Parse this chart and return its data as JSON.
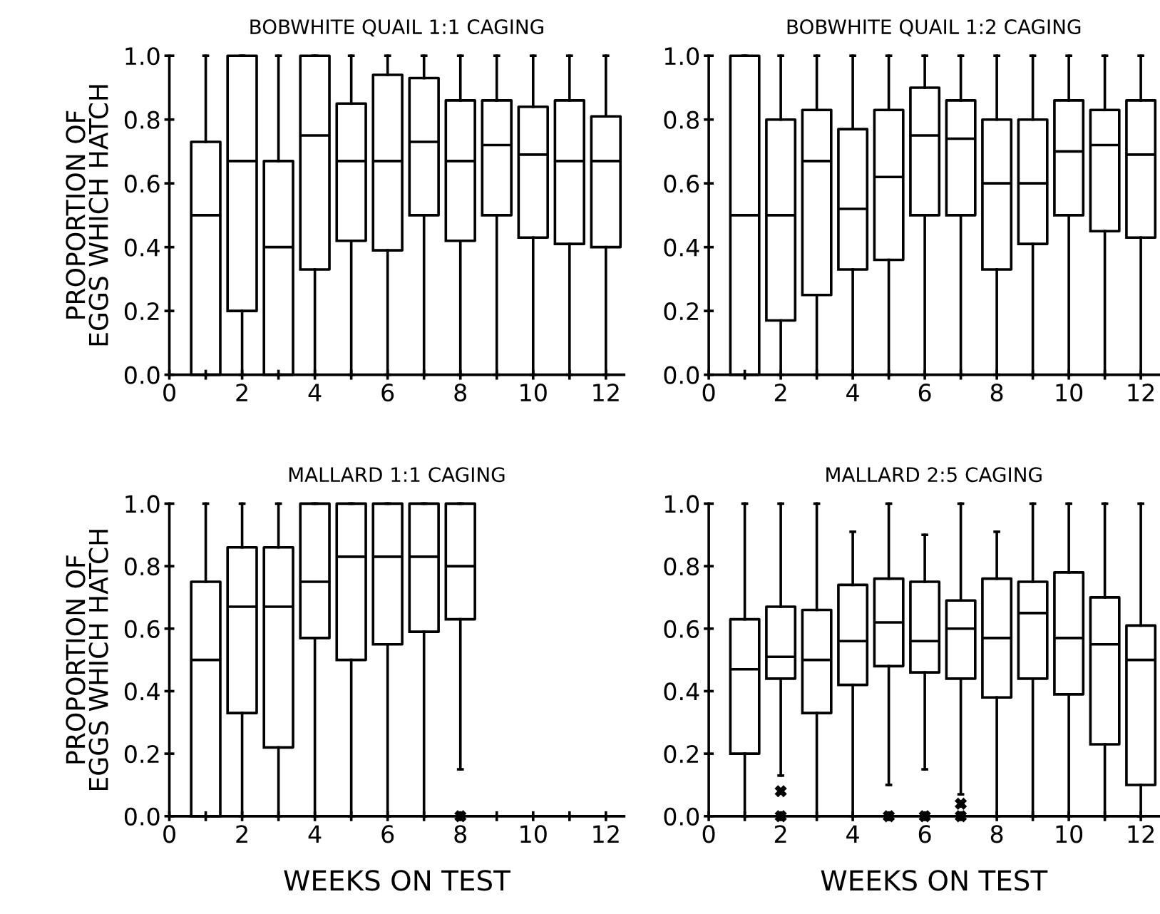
{
  "chart_data": [
    {
      "type": "box",
      "title": "BOBWHITE QUAIL 1:1 CAGING",
      "ylabel": "PROPORTION OF\nEGGS WHICH HATCH",
      "x": [
        1,
        2,
        3,
        4,
        5,
        6,
        7,
        8,
        9,
        10,
        11,
        12
      ],
      "boxes": [
        {
          "low": 0,
          "q1": 0,
          "median": 0.5,
          "q3": 0.73,
          "high": 1.0
        },
        {
          "low": 0,
          "q1": 0.2,
          "median": 0.67,
          "q3": 1.0,
          "high": 1.0
        },
        {
          "low": 0,
          "q1": 0,
          "median": 0.4,
          "q3": 0.67,
          "high": 1.0
        },
        {
          "low": 0,
          "q1": 0.33,
          "median": 0.75,
          "q3": 1.0,
          "high": 1.0
        },
        {
          "low": 0,
          "q1": 0.42,
          "median": 0.67,
          "q3": 0.85,
          "high": 1.0
        },
        {
          "low": 0,
          "q1": 0.39,
          "median": 0.67,
          "q3": 0.94,
          "high": 1.0
        },
        {
          "low": 0,
          "q1": 0.5,
          "median": 0.73,
          "q3": 0.93,
          "high": 1.0
        },
        {
          "low": 0,
          "q1": 0.42,
          "median": 0.67,
          "q3": 0.86,
          "high": 1.0
        },
        {
          "low": 0,
          "q1": 0.5,
          "median": 0.72,
          "q3": 0.86,
          "high": 1.0
        },
        {
          "low": 0,
          "q1": 0.43,
          "median": 0.69,
          "q3": 0.84,
          "high": 1.0
        },
        {
          "low": 0,
          "q1": 0.41,
          "median": 0.67,
          "q3": 0.86,
          "high": 1.0
        },
        {
          "low": 0,
          "q1": 0.4,
          "median": 0.67,
          "q3": 0.81,
          "high": 1.0
        }
      ],
      "xlim": [
        0,
        12.5
      ],
      "ylim": [
        0,
        1.0
      ],
      "xticks": [
        0,
        {
          "value": 1,
          "label": null
        },
        2,
        {
          "value": 3,
          "label": null
        },
        4,
        {
          "value": 5,
          "label": null
        },
        6,
        {
          "value": 7,
          "label": null
        },
        8,
        {
          "value": 9,
          "label": null
        },
        10,
        {
          "value": 11,
          "label": null
        },
        12
      ],
      "yticks": [
        {
          "value": 0,
          "label": "0.0"
        },
        {
          "value": 0.2,
          "label": "0.2"
        },
        {
          "value": 0.4,
          "label": "0.4"
        },
        {
          "value": 0.6,
          "label": "0.6"
        },
        {
          "value": 0.8,
          "label": "0.8"
        },
        {
          "value": 1.0,
          "label": "1.0"
        }
      ]
    },
    {
      "type": "box",
      "title": "BOBWHITE QUAIL 1:2 CAGING",
      "x": [
        1,
        2,
        3,
        4,
        5,
        6,
        7,
        8,
        9,
        10,
        11,
        12
      ],
      "boxes": [
        {
          "low": 0,
          "q1": 0,
          "median": 0.5,
          "q3": 1.0,
          "high": 1.0
        },
        {
          "low": 0,
          "q1": 0.17,
          "median": 0.5,
          "q3": 0.8,
          "high": 1.0
        },
        {
          "low": 0,
          "q1": 0.25,
          "median": 0.67,
          "q3": 0.83,
          "high": 1.0
        },
        {
          "low": 0,
          "q1": 0.33,
          "median": 0.52,
          "q3": 0.77,
          "high": 1.0
        },
        {
          "low": 0,
          "q1": 0.36,
          "median": 0.62,
          "q3": 0.83,
          "high": 1.0
        },
        {
          "low": 0,
          "q1": 0.5,
          "median": 0.75,
          "q3": 0.9,
          "high": 1.0
        },
        {
          "low": 0,
          "q1": 0.5,
          "median": 0.74,
          "q3": 0.86,
          "high": 1.0
        },
        {
          "low": 0,
          "q1": 0.33,
          "median": 0.6,
          "q3": 0.8,
          "high": 1.0
        },
        {
          "low": 0,
          "q1": 0.41,
          "median": 0.6,
          "q3": 0.8,
          "high": 1.0
        },
        {
          "low": 0,
          "q1": 0.5,
          "median": 0.7,
          "q3": 0.86,
          "high": 1.0
        },
        {
          "low": 0,
          "q1": 0.45,
          "median": 0.72,
          "q3": 0.83,
          "high": 1.0
        },
        {
          "low": 0,
          "q1": 0.43,
          "median": 0.69,
          "q3": 0.86,
          "high": 1.0
        }
      ],
      "xlim": [
        0,
        12.5
      ],
      "ylim": [
        0,
        1.0
      ],
      "xticks": [
        0,
        {
          "value": 1,
          "label": null
        },
        2,
        {
          "value": 3,
          "label": null
        },
        4,
        {
          "value": 5,
          "label": null
        },
        6,
        {
          "value": 7,
          "label": null
        },
        8,
        {
          "value": 9,
          "label": null
        },
        10,
        {
          "value": 11,
          "label": null
        },
        12
      ],
      "yticks": [
        {
          "value": 0,
          "label": "0.0"
        },
        {
          "value": 0.2,
          "label": "0.2"
        },
        {
          "value": 0.4,
          "label": "0.4"
        },
        {
          "value": 0.6,
          "label": "0.6"
        },
        {
          "value": 0.8,
          "label": "0.8"
        },
        {
          "value": 1.0,
          "label": "1.0"
        }
      ]
    },
    {
      "type": "box",
      "title": "MALLARD 1:1 CAGING",
      "ylabel": "PROPORTION OF\nEGGS WHICH HATCH",
      "xlabel": "WEEKS ON TEST",
      "x": [
        1,
        2,
        3,
        4,
        5,
        6,
        7,
        8
      ],
      "boxes": [
        {
          "low": 0,
          "q1": 0,
          "median": 0.5,
          "q3": 0.75,
          "high": 1.0
        },
        {
          "low": 0,
          "q1": 0.33,
          "median": 0.67,
          "q3": 0.86,
          "high": 1.0
        },
        {
          "low": 0,
          "q1": 0.22,
          "median": 0.67,
          "q3": 0.86,
          "high": 1.0
        },
        {
          "low": 0,
          "q1": 0.57,
          "median": 0.75,
          "q3": 1.0,
          "high": 1.0
        },
        {
          "low": 0,
          "q1": 0.5,
          "median": 0.83,
          "q3": 1.0,
          "high": 1.0
        },
        {
          "low": 0,
          "q1": 0.55,
          "median": 0.83,
          "q3": 1.0,
          "high": 1.0
        },
        {
          "low": 0,
          "q1": 0.59,
          "median": 0.83,
          "q3": 1.0,
          "high": 1.0
        },
        {
          "low": 0.15,
          "q1": 0.63,
          "median": 0.8,
          "q3": 1.0,
          "high": 1.0,
          "outliers": [
            0
          ]
        }
      ],
      "xlim": [
        0,
        12.5
      ],
      "ylim": [
        0,
        1.0
      ],
      "xticks": [
        0,
        {
          "value": 1,
          "label": null
        },
        2,
        {
          "value": 3,
          "label": null
        },
        4,
        {
          "value": 5,
          "label": null
        },
        6,
        {
          "value": 7,
          "label": null
        },
        8,
        {
          "value": 9,
          "label": null
        },
        10,
        {
          "value": 11,
          "label": null
        },
        12
      ],
      "yticks": [
        {
          "value": 0,
          "label": "0.0"
        },
        {
          "value": 0.2,
          "label": "0.2"
        },
        {
          "value": 0.4,
          "label": "0.4"
        },
        {
          "value": 0.6,
          "label": "0.6"
        },
        {
          "value": 0.8,
          "label": "0.8"
        },
        {
          "value": 1.0,
          "label": "1.0"
        }
      ]
    },
    {
      "type": "box",
      "title": "MALLARD 2:5 CAGING",
      "xlabel": "WEEKS ON TEST",
      "x": [
        1,
        2,
        3,
        4,
        5,
        6,
        7,
        8,
        9,
        10,
        11,
        12
      ],
      "boxes": [
        {
          "low": 0,
          "q1": 0.2,
          "median": 0.47,
          "q3": 0.63,
          "high": 1.0
        },
        {
          "low": 0.13,
          "q1": 0.44,
          "median": 0.51,
          "q3": 0.67,
          "high": 1.0,
          "outliers": [
            0.08,
            0
          ]
        },
        {
          "low": 0,
          "q1": 0.33,
          "median": 0.5,
          "q3": 0.66,
          "high": 1.0
        },
        {
          "low": 0,
          "q1": 0.42,
          "median": 0.56,
          "q3": 0.74,
          "high": 0.91
        },
        {
          "low": 0.1,
          "q1": 0.48,
          "median": 0.62,
          "q3": 0.76,
          "high": 1.0,
          "outliers": [
            0
          ]
        },
        {
          "low": 0.15,
          "q1": 0.46,
          "median": 0.56,
          "q3": 0.75,
          "high": 0.9,
          "outliers": [
            0
          ]
        },
        {
          "low": 0.07,
          "q1": 0.44,
          "median": 0.6,
          "q3": 0.69,
          "high": 1.0,
          "outliers": [
            0.04,
            0
          ]
        },
        {
          "low": 0,
          "q1": 0.38,
          "median": 0.57,
          "q3": 0.76,
          "high": 0.91
        },
        {
          "low": 0,
          "q1": 0.44,
          "median": 0.65,
          "q3": 0.75,
          "high": 1.0
        },
        {
          "low": 0,
          "q1": 0.39,
          "median": 0.57,
          "q3": 0.78,
          "high": 1.0
        },
        {
          "low": 0,
          "q1": 0.23,
          "median": 0.55,
          "q3": 0.7,
          "high": 1.0
        },
        {
          "low": 0,
          "q1": 0.1,
          "median": 0.5,
          "q3": 0.61,
          "high": 1.0
        }
      ],
      "xlim": [
        0,
        12.5
      ],
      "ylim": [
        0,
        1.0
      ],
      "xticks": [
        0,
        {
          "value": 1,
          "label": null
        },
        2,
        {
          "value": 3,
          "label": null
        },
        4,
        {
          "value": 5,
          "label": null
        },
        6,
        {
          "value": 7,
          "label": null
        },
        8,
        {
          "value": 9,
          "label": null
        },
        10,
        {
          "value": 11,
          "label": null
        },
        12
      ],
      "yticks": [
        {
          "value": 0,
          "label": "0.0"
        },
        {
          "value": 0.2,
          "label": "0.2"
        },
        {
          "value": 0.4,
          "label": "0.4"
        },
        {
          "value": 0.6,
          "label": "0.6"
        },
        {
          "value": 0.8,
          "label": "0.8"
        },
        {
          "value": 1.0,
          "label": "1.0"
        }
      ]
    }
  ]
}
